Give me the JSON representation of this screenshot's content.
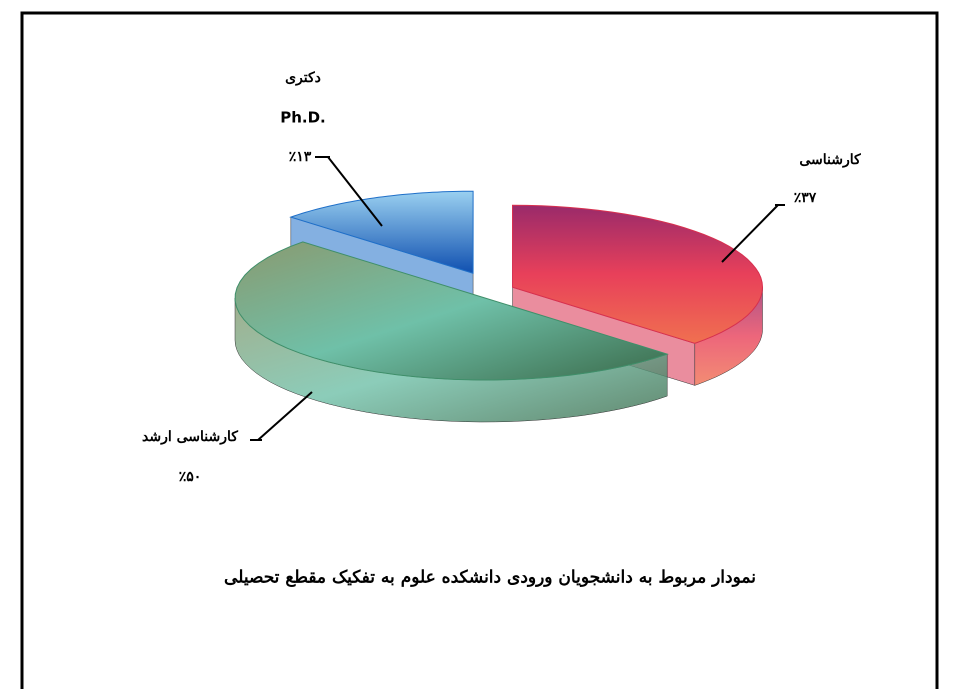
{
  "chart_data": {
    "type": "pie",
    "title": "نمودار مربوط به دانشجویان ورودی دانشکده علوم به تفکیک مقطع تحصیلی",
    "categories": [
      "کارشناسی",
      "کارشناسی ارشد",
      "دکتری"
    ],
    "category_sublabels": [
      null,
      null,
      "Ph.D."
    ],
    "values": [
      37,
      50,
      13
    ],
    "value_labels": [
      "٪۳۷",
      "٪۵۰",
      "٪۱۳"
    ],
    "colors": [
      "#d8304f",
      "#3f8f6a",
      "#1f6fc8"
    ],
    "exploded": [
      true,
      false,
      true
    ]
  }
}
